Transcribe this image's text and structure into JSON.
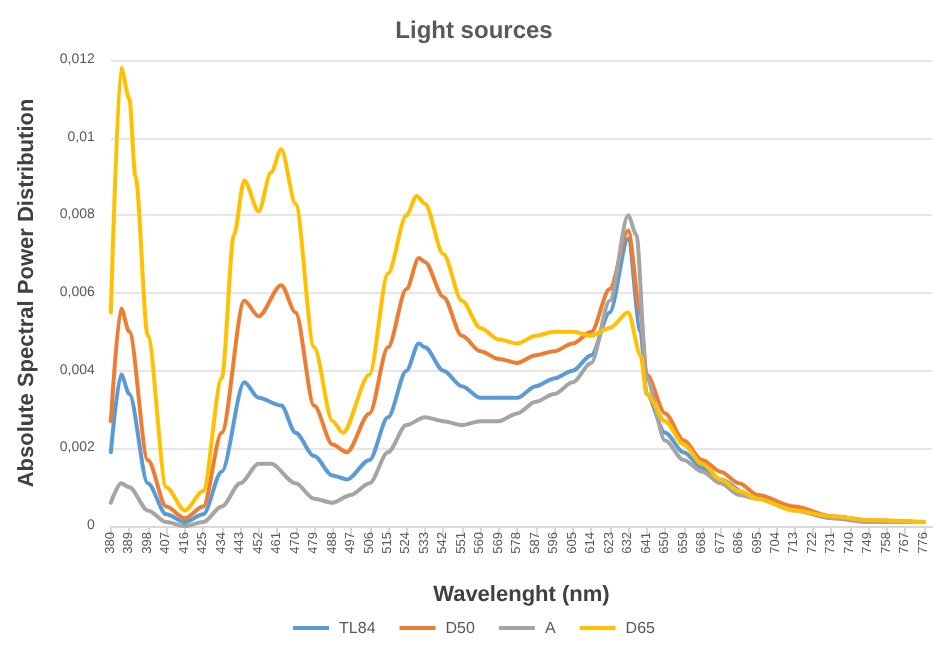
{
  "chart_data": {
    "type": "line",
    "title": "Light sources",
    "xlabel": "Wavelenght (nm)",
    "ylabel": "Absolute Spectral Power Distribution",
    "xlim": [
      380,
      780
    ],
    "xticks": [
      380,
      389,
      398,
      407,
      416,
      425,
      434,
      443,
      452,
      461,
      470,
      479,
      488,
      497,
      506,
      515,
      524,
      533,
      542,
      551,
      560,
      569,
      578,
      587,
      596,
      605,
      614,
      623,
      632,
      641,
      650,
      659,
      668,
      677,
      686,
      695,
      704,
      713,
      722,
      731,
      740,
      749,
      758,
      767,
      776
    ],
    "ylim": [
      0,
      0.012
    ],
    "yticks": [
      0,
      {
        "value": 0.002,
        "label": "0,002"
      },
      {
        "value": 0.004,
        "label": "0,004"
      },
      {
        "value": 0.006,
        "label": "0,006"
      },
      {
        "value": 0.008,
        "label": "0,008"
      },
      {
        "value": 0.01,
        "label": "0,01"
      },
      {
        "value": 0.012,
        "label": "0,012"
      }
    ],
    "grid": "y",
    "legend": "bottom",
    "marker": "none",
    "line_style": "solid",
    "series": [
      {
        "name": "TL84",
        "color": "#5b9bd5",
        "x": [
          380,
          385,
          389,
          398,
          407,
          416,
          425,
          434,
          445,
          452,
          463,
          470,
          479,
          488,
          495,
          506,
          515,
          524,
          530,
          533,
          542,
          551,
          560,
          569,
          578,
          587,
          596,
          605,
          614,
          623,
          632,
          638,
          641,
          650,
          659,
          668,
          677,
          686
        ],
        "values": [
          0.0019,
          0.0039,
          0.0034,
          0.0011,
          0.0003,
          0.0001,
          0.0003,
          0.0014,
          0.0037,
          0.0033,
          0.0031,
          0.0024,
          0.0018,
          0.0013,
          0.0012,
          0.0017,
          0.0028,
          0.004,
          0.0047,
          0.0046,
          0.004,
          0.0036,
          0.0033,
          0.0033,
          0.0033,
          0.0036,
          0.0038,
          0.004,
          0.0044,
          0.0055,
          0.0074,
          0.005,
          0.0034,
          0.0024,
          0.0019,
          0.0015,
          0.0012,
          0.0009
        ]
      },
      {
        "name": "D50",
        "color": "#ed7d31",
        "x": [
          380,
          385,
          389,
          398,
          407,
          416,
          425,
          434,
          445,
          452,
          463,
          470,
          479,
          488,
          495,
          506,
          515,
          524,
          530,
          533,
          542,
          551,
          560,
          569,
          578,
          587,
          596,
          605,
          614,
          623,
          632,
          638,
          641,
          650,
          659,
          668,
          677,
          686,
          695,
          713,
          731,
          749,
          776
        ],
        "values": [
          0.0027,
          0.0056,
          0.005,
          0.0017,
          0.0005,
          0.0002,
          0.0005,
          0.0024,
          0.0058,
          0.0054,
          0.0062,
          0.0055,
          0.0031,
          0.0021,
          0.0019,
          0.0029,
          0.0046,
          0.0061,
          0.0069,
          0.0068,
          0.0059,
          0.0049,
          0.0045,
          0.0043,
          0.0042,
          0.0044,
          0.0045,
          0.0047,
          0.005,
          0.0061,
          0.0076,
          0.0055,
          0.0039,
          0.0029,
          0.0022,
          0.0017,
          0.0014,
          0.0011,
          0.0008,
          0.0005,
          0.00025,
          0.00015,
          0.0001
        ]
      },
      {
        "name": "A",
        "color": "#a5a5a5",
        "x": [
          380,
          385,
          389,
          398,
          407,
          416,
          425,
          434,
          443,
          452,
          458,
          470,
          479,
          488,
          497,
          506,
          515,
          524,
          533,
          542,
          551,
          560,
          569,
          578,
          587,
          596,
          605,
          614,
          623,
          632,
          636,
          641,
          650,
          659,
          668,
          677,
          686,
          695,
          713,
          731,
          749,
          776
        ],
        "values": [
          0.0006,
          0.0011,
          0.001,
          0.0004,
          0.0001,
          0,
          0.0001,
          0.0005,
          0.0011,
          0.0016,
          0.0016,
          0.0011,
          0.0007,
          0.0006,
          0.0008,
          0.0011,
          0.0019,
          0.0026,
          0.0028,
          0.0027,
          0.0026,
          0.0027,
          0.0027,
          0.0029,
          0.0032,
          0.0034,
          0.0037,
          0.0042,
          0.0058,
          0.008,
          0.0075,
          0.0038,
          0.0022,
          0.0017,
          0.0014,
          0.0011,
          0.0008,
          0.0007,
          0.0004,
          0.0002,
          0.0001,
          0.0001
        ]
      },
      {
        "name": "D65",
        "color": "#ffc000",
        "x": [
          380,
          385,
          389,
          392,
          398,
          407,
          416,
          425,
          434,
          440,
          445,
          452,
          458,
          463,
          470,
          479,
          488,
          493,
          506,
          515,
          524,
          529,
          533,
          542,
          551,
          560,
          569,
          578,
          587,
          596,
          605,
          614,
          623,
          632,
          638,
          641,
          650,
          659,
          668,
          677,
          686,
          695,
          713,
          731,
          749,
          776
        ],
        "values": [
          0.0055,
          0.0118,
          0.011,
          0.009,
          0.0049,
          0.001,
          0.0004,
          0.0009,
          0.0038,
          0.0075,
          0.0089,
          0.0081,
          0.0091,
          0.0097,
          0.0083,
          0.0046,
          0.0027,
          0.0024,
          0.0039,
          0.0065,
          0.008,
          0.0085,
          0.0083,
          0.007,
          0.0058,
          0.0051,
          0.0048,
          0.0047,
          0.0049,
          0.005,
          0.005,
          0.0049,
          0.0051,
          0.0055,
          0.0044,
          0.0034,
          0.0027,
          0.0021,
          0.0016,
          0.0012,
          0.0009,
          0.0007,
          0.0004,
          0.00025,
          0.00015,
          0.0001
        ]
      }
    ]
  }
}
